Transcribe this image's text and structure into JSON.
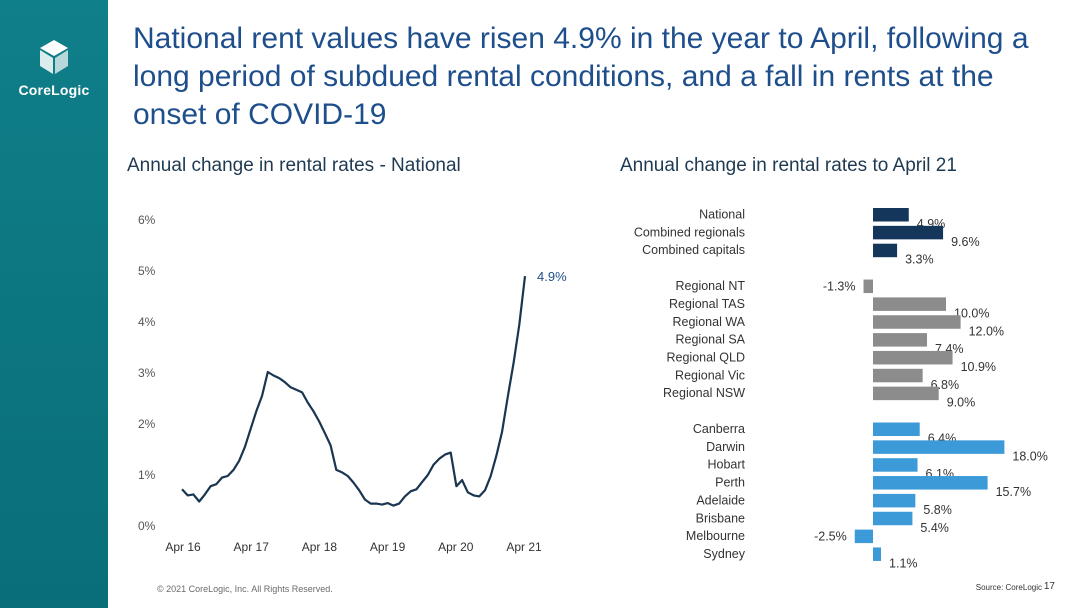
{
  "brand": {
    "name": "CoreLogic"
  },
  "title": "National rent values have risen 4.9% in the year to April, following a long period of subdued rental conditions, and a fall in rents at the onset of COVID-19",
  "footer": {
    "copyright": "© 2021 CoreLogic, Inc. All Rights Reserved.",
    "source": "Source: CoreLogic",
    "page": "17"
  },
  "colors": {
    "sidebar": "#0e7c86",
    "title": "#1e4f8c",
    "line": "#1a3550",
    "navy": "#14365a",
    "grey": "#8c8c8c",
    "blue": "#3d9ad8"
  },
  "chart_data": [
    {
      "type": "line",
      "title": "Annual change in rental rates - National",
      "xlabel": "",
      "ylabel": "",
      "x_ticks": [
        "Apr 16",
        "Apr 17",
        "Apr 18",
        "Apr 19",
        "Apr 20",
        "Apr 21"
      ],
      "y_ticks": [
        "0%",
        "1%",
        "2%",
        "3%",
        "4%",
        "5%",
        "6%"
      ],
      "ylim": [
        0,
        6
      ],
      "grid": false,
      "end_label": "4.9%",
      "series": [
        {
          "values": [
            0.72,
            0.6,
            0.62,
            0.48,
            0.62,
            0.78,
            0.82,
            0.95,
            0.98,
            1.1,
            1.28,
            1.55,
            1.9,
            2.25,
            2.55,
            3.02,
            2.95,
            2.9,
            2.82,
            2.72,
            2.67,
            2.62,
            2.42,
            2.25,
            2.05,
            1.82,
            1.58,
            1.1,
            1.05,
            0.98,
            0.85,
            0.7,
            0.52,
            0.44,
            0.44,
            0.42,
            0.45,
            0.4,
            0.44,
            0.58,
            0.68,
            0.72,
            0.86,
            1.0,
            1.2,
            1.32,
            1.4,
            1.44,
            0.78,
            0.9,
            0.66,
            0.6,
            0.58,
            0.7,
            0.98,
            1.38,
            1.85,
            2.55,
            3.2,
            3.95,
            4.9
          ]
        }
      ]
    },
    {
      "type": "bar",
      "orientation": "horizontal",
      "title": "Annual change in rental rates to April 21",
      "xlabel": "",
      "ylabel": "",
      "groups": [
        {
          "color": "navy",
          "items": [
            {
              "label": "National",
              "value": 4.9,
              "value_label": "4.9%"
            },
            {
              "label": "Combined regionals",
              "value": 9.6,
              "value_label": "9.6%"
            },
            {
              "label": "Combined capitals",
              "value": 3.3,
              "value_label": "3.3%"
            }
          ]
        },
        {
          "color": "grey",
          "items": [
            {
              "label": "Regional NT",
              "value": -1.3,
              "value_label": "-1.3%"
            },
            {
              "label": "Regional TAS",
              "value": 10.0,
              "value_label": "10.0%"
            },
            {
              "label": "Regional WA",
              "value": 12.0,
              "value_label": "12.0%"
            },
            {
              "label": "Regional SA",
              "value": 7.4,
              "value_label": "7.4%"
            },
            {
              "label": "Regional QLD",
              "value": 10.9,
              "value_label": "10.9%"
            },
            {
              "label": "Regional Vic",
              "value": 6.8,
              "value_label": "6.8%"
            },
            {
              "label": "Regional NSW",
              "value": 9.0,
              "value_label": "9.0%"
            }
          ]
        },
        {
          "color": "blue",
          "items": [
            {
              "label": "Canberra",
              "value": 6.4,
              "value_label": "6.4%"
            },
            {
              "label": "Darwin",
              "value": 18.0,
              "value_label": "18.0%"
            },
            {
              "label": "Hobart",
              "value": 6.1,
              "value_label": "6.1%"
            },
            {
              "label": "Perth",
              "value": 15.7,
              "value_label": "15.7%"
            },
            {
              "label": "Adelaide",
              "value": 5.8,
              "value_label": "5.8%"
            },
            {
              "label": "Brisbane",
              "value": 5.4,
              "value_label": "5.4%"
            },
            {
              "label": "Melbourne",
              "value": -2.5,
              "value_label": "-2.5%"
            },
            {
              "label": "Sydney",
              "value": 1.1,
              "value_label": "1.1%"
            }
          ]
        }
      ]
    }
  ]
}
